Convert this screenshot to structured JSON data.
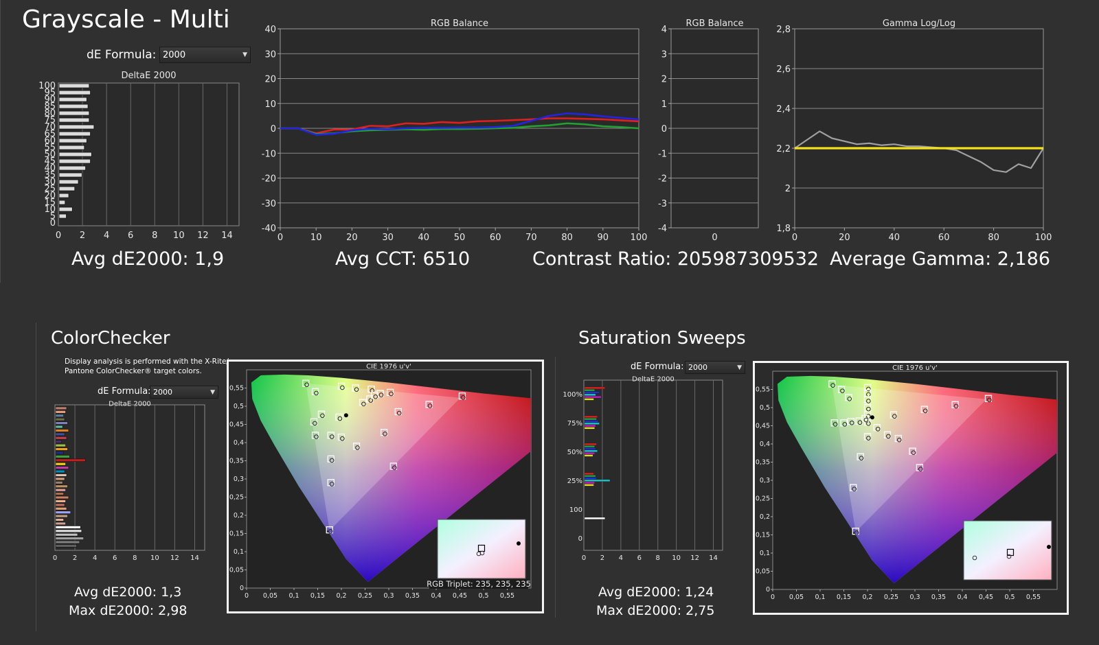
{
  "page": {
    "title": "Grayscale - Multi"
  },
  "grayscale": {
    "formula_label": "dE Formula:",
    "formula_value": "2000",
    "delta_chart": {
      "title": "DeltaE 2000",
      "xlim": [
        0,
        15
      ],
      "x_ticks": [
        "0",
        "2",
        "4",
        "6",
        "8",
        "10",
        "12",
        "14"
      ],
      "y_ticks": [
        "100",
        "95",
        "90",
        "85",
        "80",
        "75",
        "70",
        "65",
        "60",
        "55",
        "50",
        "45",
        "40",
        "35",
        "30",
        "25",
        "20",
        "15",
        "10",
        "5",
        "0"
      ],
      "values": [
        2.5,
        2.6,
        2.3,
        2.4,
        2.5,
        2.5,
        2.9,
        2.6,
        2.3,
        2.1,
        2.7,
        2.6,
        2.2,
        1.9,
        1.6,
        1.3,
        0.8,
        0.5,
        1.1,
        0.6,
        0.0
      ]
    },
    "avg_de": "Avg dE2000: 1,9",
    "avg_cct": "Avg CCT: 6510",
    "contrast": "Contrast Ratio: 205987309532",
    "avg_gamma": "Average Gamma: 2,186"
  },
  "chart_data": [
    {
      "type": "line",
      "title": "RGB Balance",
      "x": [
        0,
        5,
        10,
        15,
        20,
        25,
        30,
        35,
        40,
        45,
        50,
        55,
        60,
        65,
        70,
        75,
        80,
        85,
        90,
        95,
        100
      ],
      "xlim": [
        0,
        100
      ],
      "ylim": [
        -40,
        40
      ],
      "x_ticks": [
        "0",
        "10",
        "20",
        "30",
        "40",
        "50",
        "60",
        "70",
        "80",
        "90",
        "100"
      ],
      "y_ticks": [
        "40",
        "30",
        "20",
        "10",
        "0",
        "-10",
        "-20",
        "-30",
        "-40"
      ],
      "series": [
        {
          "color": "#e02020",
          "values": [
            0,
            0,
            -2,
            -0.5,
            -0.5,
            1,
            0.8,
            2,
            1.8,
            2.5,
            2.2,
            2.8,
            3,
            3.3,
            3.6,
            4,
            4,
            3.8,
            3.6,
            3.2,
            2.8
          ]
        },
        {
          "color": "#22a030",
          "values": [
            0,
            0,
            -2.3,
            -2,
            -1.2,
            -0.8,
            -0.6,
            -0.4,
            -0.6,
            -0.3,
            -0.3,
            -0.2,
            0,
            0.2,
            0.8,
            1.2,
            2,
            1.6,
            0.8,
            0.5,
            0
          ]
        },
        {
          "color": "#2424e0",
          "values": [
            0,
            0,
            -2.6,
            -2.2,
            -0.8,
            -0.2,
            -0.4,
            0,
            0.2,
            0.2,
            0.3,
            0.3,
            0.5,
            1,
            3,
            5,
            6,
            5.6,
            4.8,
            4.2,
            3.6
          ]
        }
      ]
    },
    {
      "type": "line",
      "title": "RGB Balance",
      "x_ticks": [
        "0"
      ],
      "ylim": [
        -4,
        4
      ],
      "y_ticks": [
        "4",
        "3",
        "2",
        "1",
        "0",
        "-1",
        "-2",
        "-3",
        "-4"
      ],
      "series": []
    },
    {
      "type": "line",
      "title": "Gamma Log/Log",
      "x": [
        0,
        10,
        15,
        20,
        25,
        30,
        35,
        40,
        45,
        50,
        55,
        60,
        65,
        70,
        75,
        80,
        85,
        90,
        95,
        100
      ],
      "xlim": [
        0,
        100
      ],
      "ylim": [
        1.8,
        2.8
      ],
      "x_ticks": [
        "0",
        "20",
        "40",
        "60",
        "80",
        "100"
      ],
      "y_ticks": [
        "2,8",
        "2,6",
        "2,4",
        "2,2",
        "2",
        "1,8"
      ],
      "target": 2.2,
      "series": [
        {
          "color": "#a0a0a0",
          "values": [
            2.2,
            2.285,
            2.25,
            2.235,
            2.22,
            2.225,
            2.215,
            2.22,
            2.21,
            2.21,
            2.205,
            2.2,
            2.19,
            2.16,
            2.13,
            2.09,
            2.08,
            2.12,
            2.1,
            2.2
          ]
        },
        {
          "color": "#f5e020",
          "values": [
            2.2,
            2.2,
            2.2,
            2.2,
            2.2,
            2.2,
            2.2,
            2.2,
            2.2,
            2.2,
            2.2,
            2.2,
            2.2,
            2.2,
            2.2,
            2.2,
            2.2,
            2.2,
            2.2,
            2.2
          ]
        }
      ]
    }
  ],
  "colorchecker": {
    "title": "ColorChecker",
    "note_line1": "Display analysis is performed with the X-Rite/",
    "note_line2": "Pantone ColorChecker® target colors.",
    "formula_label": "dE Formula:",
    "formula_value": "2000",
    "delta_title": "DeltaE 2000",
    "x_ticks": [
      "0",
      "2",
      "4",
      "6",
      "8",
      "10",
      "12",
      "14"
    ],
    "bars": [
      {
        "v": 1.1,
        "c": "#c08070"
      },
      {
        "v": 1.0,
        "c": "#e8a080"
      },
      {
        "v": 0.8,
        "c": "#6080a0"
      },
      {
        "v": 0.9,
        "c": "#707040"
      },
      {
        "v": 1.2,
        "c": "#8080c0"
      },
      {
        "v": 0.7,
        "c": "#60c0a0"
      },
      {
        "v": 1.3,
        "c": "#e08020"
      },
      {
        "v": 0.9,
        "c": "#4050a0"
      },
      {
        "v": 1.1,
        "c": "#c04050"
      },
      {
        "v": 0.6,
        "c": "#503070"
      },
      {
        "v": 1.0,
        "c": "#a0c040"
      },
      {
        "v": 1.2,
        "c": "#f0a020"
      },
      {
        "v": 0.8,
        "c": "#203080"
      },
      {
        "v": 1.4,
        "c": "#40a040"
      },
      {
        "v": 2.98,
        "c": "#c02020"
      },
      {
        "v": 1.0,
        "c": "#f0d020"
      },
      {
        "v": 1.3,
        "c": "#c040a0"
      },
      {
        "v": 0.9,
        "c": "#0090c0"
      },
      {
        "v": 1.1,
        "c": "#e0c0b0"
      },
      {
        "v": 0.9,
        "c": "#d0a080"
      },
      {
        "v": 0.7,
        "c": "#a08070"
      },
      {
        "v": 1.2,
        "c": "#c09060"
      },
      {
        "v": 1.0,
        "c": "#e0a0a0"
      },
      {
        "v": 0.8,
        "c": "#b07050"
      },
      {
        "v": 1.3,
        "c": "#d08060"
      },
      {
        "v": 1.0,
        "c": "#f0b090"
      },
      {
        "v": 0.9,
        "c": "#c07060"
      },
      {
        "v": 1.1,
        "c": "#e0a070"
      },
      {
        "v": 1.5,
        "c": "#a0a0ff"
      },
      {
        "v": 1.2,
        "c": "#c0a080"
      },
      {
        "v": 0.8,
        "c": "#e0b0a0"
      },
      {
        "v": 1.0,
        "c": "#d0a090"
      },
      {
        "v": 2.5,
        "c": "#ffffff"
      },
      {
        "v": 2.6,
        "c": "#e0e0e0"
      },
      {
        "v": 2.2,
        "c": "#c0c0c0"
      },
      {
        "v": 2.8,
        "c": "#a0a0a0"
      },
      {
        "v": 2.4,
        "c": "#808080"
      },
      {
        "v": 2.1,
        "c": "#606060"
      }
    ],
    "avg": "Avg dE2000: 1,3",
    "max": "Max dE2000: 2,98",
    "cie_title": "CIE 1976 u'v'",
    "rgb_triplet": "RGB Triplet: 235, 235, 235"
  },
  "sweeps": {
    "title": "Saturation Sweeps",
    "formula_label": "dE Formula:",
    "formula_value": "2000",
    "delta_title": "DeltaE 2000",
    "x_ticks": [
      "0",
      "2",
      "4",
      "6",
      "8",
      "10",
      "12",
      "14"
    ],
    "y_labels": [
      "100%",
      "75%",
      "50%",
      "25%",
      "100",
      "0"
    ],
    "avg": "Avg dE2000: 1,24",
    "max": "Max dE2000: 2,75",
    "cie_title": "CIE 1976 u'v'"
  },
  "cie_axes": {
    "x_ticks": [
      "0",
      "0,05",
      "0,1",
      "0,15",
      "0,2",
      "0,25",
      "0,3",
      "0,35",
      "0,4",
      "0,45",
      "0,5",
      "0,55"
    ],
    "y_ticks": [
      "0,55",
      "0,5",
      "0,45",
      "0,4",
      "0,35",
      "0,3",
      "0,25",
      "0,2",
      "0,15",
      "0,1",
      "0,05",
      "0"
    ]
  }
}
